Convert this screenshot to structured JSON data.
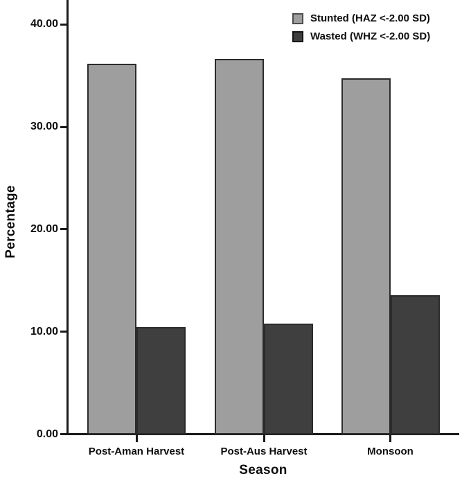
{
  "figure": {
    "background": "#ffffff",
    "axis_color": "#1a1a1a",
    "bar_border_color": "#2b2b2b"
  },
  "chart_data": {
    "type": "bar",
    "title": "",
    "xlabel": "Season",
    "ylabel": "Percentage",
    "categories": [
      "Post-Aman Harvest",
      "Post-Aus Harvest",
      "Monsoon"
    ],
    "series": [
      {
        "name": "Stunted (HAZ <-2.00 SD)",
        "values": [
          36.2,
          36.7,
          34.8
        ],
        "color": "#9e9e9e",
        "swatch_border": "#4d4d4d"
      },
      {
        "name": "Wasted (WHZ <-2.00 SD)",
        "values": [
          10.5,
          10.8,
          13.6
        ],
        "color": "#3f3f3f",
        "swatch_border": "#141414"
      }
    ],
    "ylim": [
      0,
      42.4
    ],
    "yticks": [
      0,
      10,
      20,
      30,
      40
    ],
    "ytick_labels": [
      "0.00",
      "10.00",
      "20.00",
      "30.00",
      "40.00"
    ],
    "grid": false,
    "legend_position": "top-right"
  }
}
